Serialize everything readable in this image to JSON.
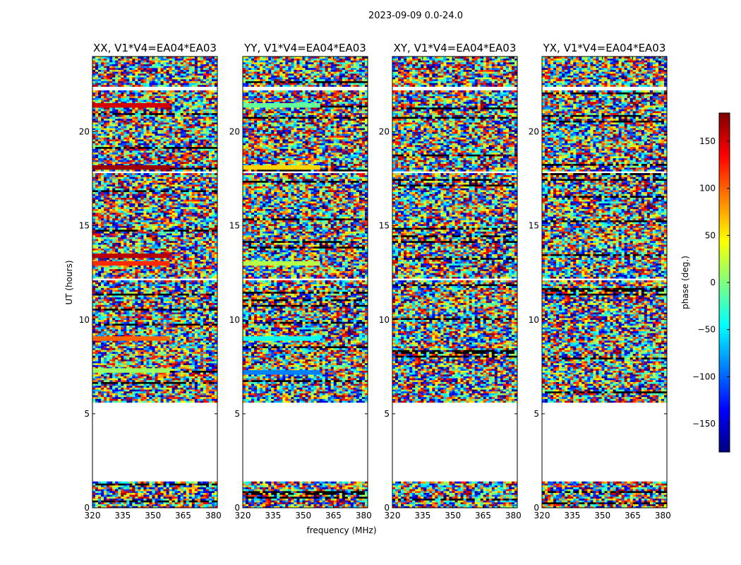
{
  "chart_data": {
    "type": "heatmap",
    "suptitle": "2023-09-09 0.0-24.0",
    "xlabel": "frequency (MHz)",
    "ylabel": "UT (hours)",
    "xlim": [
      320,
      382
    ],
    "ylim": [
      0,
      24
    ],
    "xticks": [
      320,
      335,
      350,
      365,
      380
    ],
    "xtick_labels": [
      "320",
      "335",
      "350",
      "365",
      "380"
    ],
    "yticks": [
      0,
      5,
      10,
      15,
      20
    ],
    "ytick_labels": [
      "0",
      "5",
      "10",
      "15",
      "20"
    ],
    "colorbar": {
      "label": "phase (deg.)",
      "range": [
        -180,
        180
      ],
      "ticks": [
        -150,
        -100,
        -50,
        0,
        50,
        100,
        150
      ],
      "tick_labels": [
        "−150",
        "−100",
        "−50",
        "0",
        "50",
        "100",
        "150"
      ],
      "colormap": "jet"
    },
    "data_gaps_hours": [
      [
        1.4,
        5.6
      ],
      [
        12.1,
        12.2
      ],
      [
        17.8,
        17.9
      ],
      [
        22.2,
        22.4
      ]
    ],
    "panels": [
      {
        "title": "XX, V1*V4=EA04*EA03",
        "coherent_bands": [
          {
            "ut": 21.4,
            "phase": 150
          },
          {
            "ut": 18.1,
            "phase": 170
          },
          {
            "ut": 13.4,
            "phase": 160
          },
          {
            "ut": 13.0,
            "phase": 120
          },
          {
            "ut": 9.0,
            "phase": 100
          },
          {
            "ut": 7.3,
            "phase": 10
          }
        ]
      },
      {
        "title": "YY, V1*V4=EA04*EA03",
        "coherent_bands": [
          {
            "ut": 21.4,
            "phase": -10
          },
          {
            "ut": 18.1,
            "phase": 60
          },
          {
            "ut": 13.0,
            "phase": 20
          },
          {
            "ut": 9.0,
            "phase": -40
          },
          {
            "ut": 7.2,
            "phase": -90
          }
        ]
      },
      {
        "title": "XY, V1*V4=EA04*EA03",
        "coherent_bands": []
      },
      {
        "title": "YX, V1*V4=EA04*EA03",
        "coherent_bands": []
      }
    ]
  }
}
